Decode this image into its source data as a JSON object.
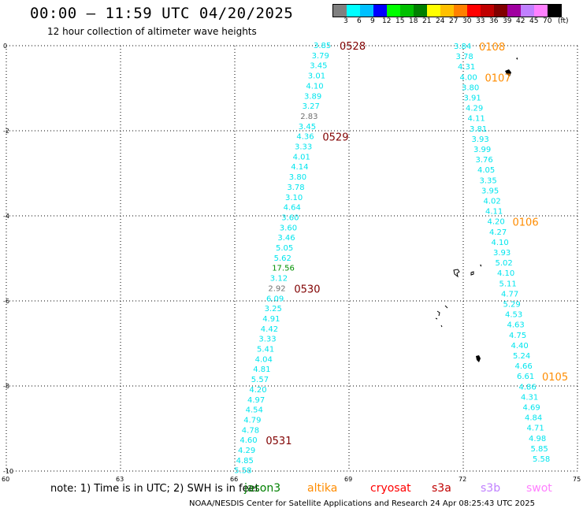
{
  "header": {
    "title": "00:00 – 11:59 UTC 04/20/2025",
    "subtitle": "12 hour collection of altimeter wave heights"
  },
  "legend": {
    "colors": [
      "#808080",
      "#00ffff",
      "#00c0ff",
      "#0000ff",
      "#00ff00",
      "#00c000",
      "#008000",
      "#ffff00",
      "#ffc000",
      "#ff8000",
      "#ff0000",
      "#c00000",
      "#800000",
      "#a000a0",
      "#c080ff",
      "#ff80ff",
      "#000000"
    ],
    "labels": [
      "3",
      "6",
      "9",
      "12",
      "15",
      "18",
      "21",
      "24",
      "27",
      "30",
      "33",
      "36",
      "39",
      "42",
      "45",
      "70",
      "(ft)"
    ]
  },
  "axes": {
    "y_ticks": [
      "0",
      "-2",
      "-4",
      "-6",
      "-8",
      "-10"
    ],
    "x_ticks": [
      "60",
      "63",
      "66",
      "69",
      "72",
      "75"
    ]
  },
  "tracks": [
    {
      "values": [
        "3.85",
        "3.79",
        "3.45",
        "3.01",
        "4.10",
        "3.89",
        "3.27",
        "2.83",
        "3.45",
        "4.36",
        "3.33",
        "4.01",
        "4.14",
        "3.80",
        "3.78",
        "3.10",
        "4.64",
        "3.60",
        "3.60",
        "3.46",
        "5.05",
        "5.62",
        "17.56",
        "3.12",
        "2.92",
        "6.09",
        "3.25",
        "4.91",
        "4.42",
        "3.33",
        "5.41",
        "4.04",
        "4.81",
        "5.57",
        "4.20",
        "4.97",
        "4.54",
        "4.79",
        "4.78",
        "4.60",
        "4.29",
        "4.85",
        "5.58"
      ],
      "colors": [
        "c",
        "c",
        "c",
        "c",
        "c",
        "c",
        "c",
        "g",
        "c",
        "c",
        "c",
        "c",
        "c",
        "c",
        "c",
        "c",
        "c",
        "c",
        "c",
        "c",
        "c",
        "c",
        "G",
        "c",
        "g",
        "c",
        "c",
        "c",
        "c",
        "c",
        "c",
        "c",
        "c",
        "c",
        "c",
        "c",
        "c",
        "c",
        "c",
        "c",
        "c",
        "c",
        "c"
      ],
      "passes": [
        {
          "label": "0528",
          "index": 0
        },
        {
          "label": "0529",
          "index": 9
        },
        {
          "label": "0530",
          "index": 24
        },
        {
          "label": "0531",
          "index": 39
        }
      ]
    },
    {
      "values": [
        "3.84",
        "3.78",
        "4.31",
        "4.00",
        "3.80",
        "3.91",
        "4.29",
        "4.11",
        "3.81",
        "3.93",
        "3.99",
        "3.76",
        "4.05",
        "3.35",
        "3.95",
        "4.02",
        "4.11",
        "4.20",
        "4.27",
        "4.10",
        "3.93",
        "5.02",
        "4.10",
        "5.11",
        "4.77",
        "5.29",
        "4.53",
        "4.63",
        "4.75",
        "4.40",
        "5.24",
        "4.66",
        "6.61",
        "4.86",
        "4.31",
        "4.69",
        "4.84",
        "4.71",
        "4.98",
        "5.85",
        "5.58"
      ],
      "passes": [
        {
          "label": "0108",
          "index": 0
        },
        {
          "label": "0107",
          "index": 3
        },
        {
          "label": "0106",
          "index": 17
        },
        {
          "label": "0105",
          "index": 32
        }
      ]
    }
  ],
  "note": {
    "text": "note:  1) Time is in UTC;  2) SWH is in feet"
  },
  "missions": [
    {
      "name": "jason3",
      "color": "#008000"
    },
    {
      "name": "altika",
      "color": "#ff8c00"
    },
    {
      "name": "cryosat",
      "color": "#ff0000"
    },
    {
      "name": "s3a",
      "color": "#c00000"
    },
    {
      "name": "s3b",
      "color": "#c080ff"
    },
    {
      "name": "swot",
      "color": "#ff80ff"
    }
  ],
  "footer": {
    "text": "NOAA/NESDIS Center for Satellite Applications and Research     24 Apr 08:25:43 UTC 2025"
  }
}
